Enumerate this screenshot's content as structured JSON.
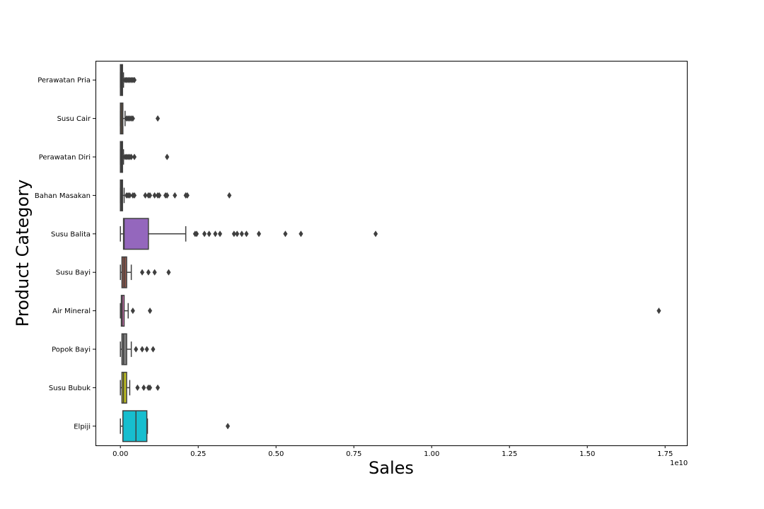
{
  "chart_data": {
    "type": "boxplot",
    "orientation": "horizontal",
    "xlabel": "Sales",
    "ylabel": "Product Category",
    "x_offset_label": "1e10",
    "x_unit_scale": 10000000000,
    "xlim": [
      -0.08,
      1.82
    ],
    "x_ticks": [
      0.0,
      0.25,
      0.5,
      0.75,
      1.0,
      1.25,
      1.5,
      1.75
    ],
    "x_tick_labels": [
      "0.00",
      "0.25",
      "0.50",
      "0.75",
      "1.00",
      "1.25",
      "1.50",
      "1.75"
    ],
    "grid": false,
    "categories": [
      {
        "name": "Perawatan Pria",
        "color": "#3a3a3a",
        "min": 0.0,
        "q1": 0.0,
        "median": 0.002,
        "q3": 0.005,
        "max": 0.01,
        "outliers": [
          0.015,
          0.02,
          0.025,
          0.03,
          0.035,
          0.04,
          0.045
        ]
      },
      {
        "name": "Susu Cair",
        "color": "#8c613c",
        "min": 0.0,
        "q1": 0.0,
        "median": 0.004,
        "q3": 0.008,
        "max": 0.015,
        "outliers": [
          0.02,
          0.025,
          0.03,
          0.035,
          0.04,
          0.12
        ]
      },
      {
        "name": "Perawatan Diri",
        "color": "#3a3a3a",
        "min": 0.0,
        "q1": 0.0,
        "median": 0.002,
        "q3": 0.005,
        "max": 0.01,
        "outliers": [
          0.015,
          0.02,
          0.025,
          0.03,
          0.035,
          0.045,
          0.15
        ]
      },
      {
        "name": "Bahan Masakan",
        "color": "#3a3a3a",
        "min": 0.0,
        "q1": 0.0,
        "median": 0.002,
        "q3": 0.006,
        "max": 0.012,
        "outliers": [
          0.02,
          0.025,
          0.03,
          0.04,
          0.045,
          0.08,
          0.09,
          0.095,
          0.11,
          0.12,
          0.125,
          0.145,
          0.15,
          0.175,
          0.21,
          0.215,
          0.35
        ]
      },
      {
        "name": "Susu Balita",
        "color": "#9467bd",
        "min": 0.0,
        "q1": 0.01,
        "median": 0.012,
        "q3": 0.09,
        "max": 0.21,
        "outliers": [
          0.24,
          0.245,
          0.27,
          0.285,
          0.305,
          0.32,
          0.365,
          0.375,
          0.39,
          0.405,
          0.445,
          0.53,
          0.58,
          0.82
        ]
      },
      {
        "name": "Susu Bayi",
        "color": "#8c564b",
        "min": 0.0,
        "q1": 0.005,
        "median": 0.012,
        "q3": 0.02,
        "max": 0.035,
        "outliers": [
          0.07,
          0.09,
          0.11,
          0.155
        ]
      },
      {
        "name": "Air Mineral",
        "color": "#e377c2",
        "min": 0.0,
        "q1": 0.003,
        "median": 0.006,
        "q3": 0.012,
        "max": 0.025,
        "outliers": [
          0.04,
          0.095,
          1.73
        ]
      },
      {
        "name": "Popok Bayi",
        "color": "#7f7f7f",
        "min": 0.0,
        "q1": 0.005,
        "median": 0.01,
        "q3": 0.02,
        "max": 0.035,
        "outliers": [
          0.05,
          0.07,
          0.085,
          0.105
        ]
      },
      {
        "name": "Susu Bubuk",
        "color": "#bcbd22",
        "min": 0.0,
        "q1": 0.005,
        "median": 0.01,
        "q3": 0.02,
        "max": 0.03,
        "outliers": [
          0.055,
          0.075,
          0.09,
          0.095,
          0.12
        ]
      },
      {
        "name": "Elpiji",
        "color": "#17becf",
        "min": 0.0,
        "q1": 0.008,
        "median": 0.05,
        "q3": 0.085,
        "max": 0.087,
        "outliers": [
          0.345
        ]
      }
    ]
  }
}
